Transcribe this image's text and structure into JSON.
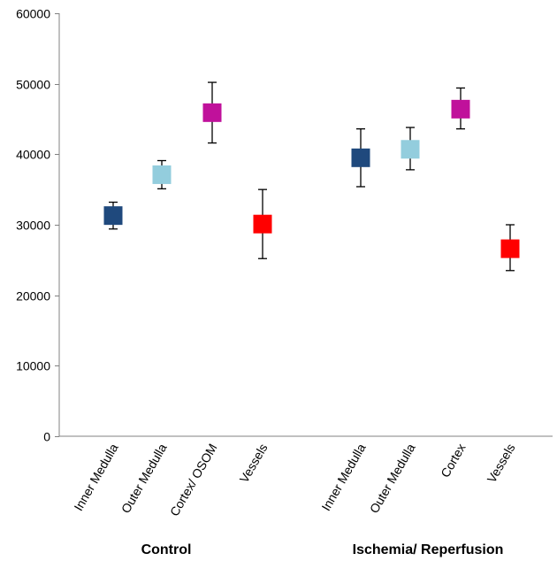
{
  "chart_data": {
    "type": "scatter",
    "subtype": "marker-with-error-bars",
    "title": "",
    "xlabel": "",
    "ylabel": "",
    "ylim": [
      0,
      60000
    ],
    "y_ticks": [
      0,
      10000,
      20000,
      30000,
      40000,
      50000,
      60000
    ],
    "y_tick_labels": [
      "0",
      "10000",
      "20000",
      "30000",
      "40000",
      "50000",
      "60000"
    ],
    "grid": false,
    "legend": "none",
    "groups": [
      {
        "name": "Control",
        "categories": [
          {
            "label": "Inner Medulla",
            "value": 31300,
            "err_low": 29400,
            "err_high": 33200,
            "color": "#1F497D"
          },
          {
            "label": "Outer Medulla",
            "value": 37100,
            "err_low": 35100,
            "err_high": 39100,
            "color": "#93CDDD"
          },
          {
            "label": "Cortex/ OSOM",
            "value": 45900,
            "err_low": 41600,
            "err_high": 50200,
            "color": "#C0119B"
          },
          {
            "label": "Vessels",
            "value": 30100,
            "err_low": 25200,
            "err_high": 35000,
            "color": "#FF0000"
          }
        ]
      },
      {
        "name": "Ischemia/ Reperfusion",
        "categories": [
          {
            "label": "Inner Medulla",
            "value": 39500,
            "err_low": 35400,
            "err_high": 43600,
            "color": "#1F497D"
          },
          {
            "label": "Outer Medulla",
            "value": 40700,
            "err_low": 37800,
            "err_high": 43800,
            "color": "#93CDDD"
          },
          {
            "label": "Cortex",
            "value": 46400,
            "err_low": 43600,
            "err_high": 49400,
            "color": "#C0119B"
          },
          {
            "label": "Vessels",
            "value": 26600,
            "err_low": 23500,
            "err_high": 30000,
            "color": "#FF0000"
          }
        ]
      }
    ]
  }
}
